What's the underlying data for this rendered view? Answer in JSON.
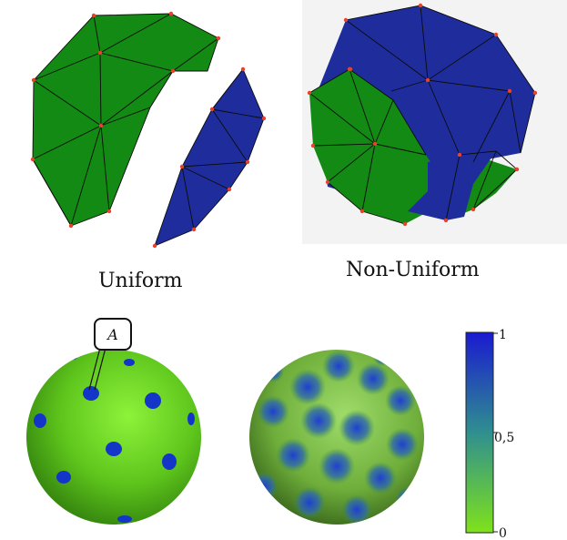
{
  "captions": {
    "uniform": "Uniform",
    "non_uniform": "Non-Uniform"
  },
  "annotation": {
    "label": "A"
  },
  "colorbar": {
    "ticks": [
      "1",
      "0,5",
      "0"
    ],
    "max_color": "#1a1ad0",
    "mid_color": "#2f8f8f",
    "min_color": "#7fe21a"
  },
  "colors": {
    "green_region": "#138a13",
    "blue_region": "#1f2d9c",
    "vertex": "#e8422a",
    "sphere_green": "#5fcf1f",
    "sphere_spot": "#1436c8"
  }
}
